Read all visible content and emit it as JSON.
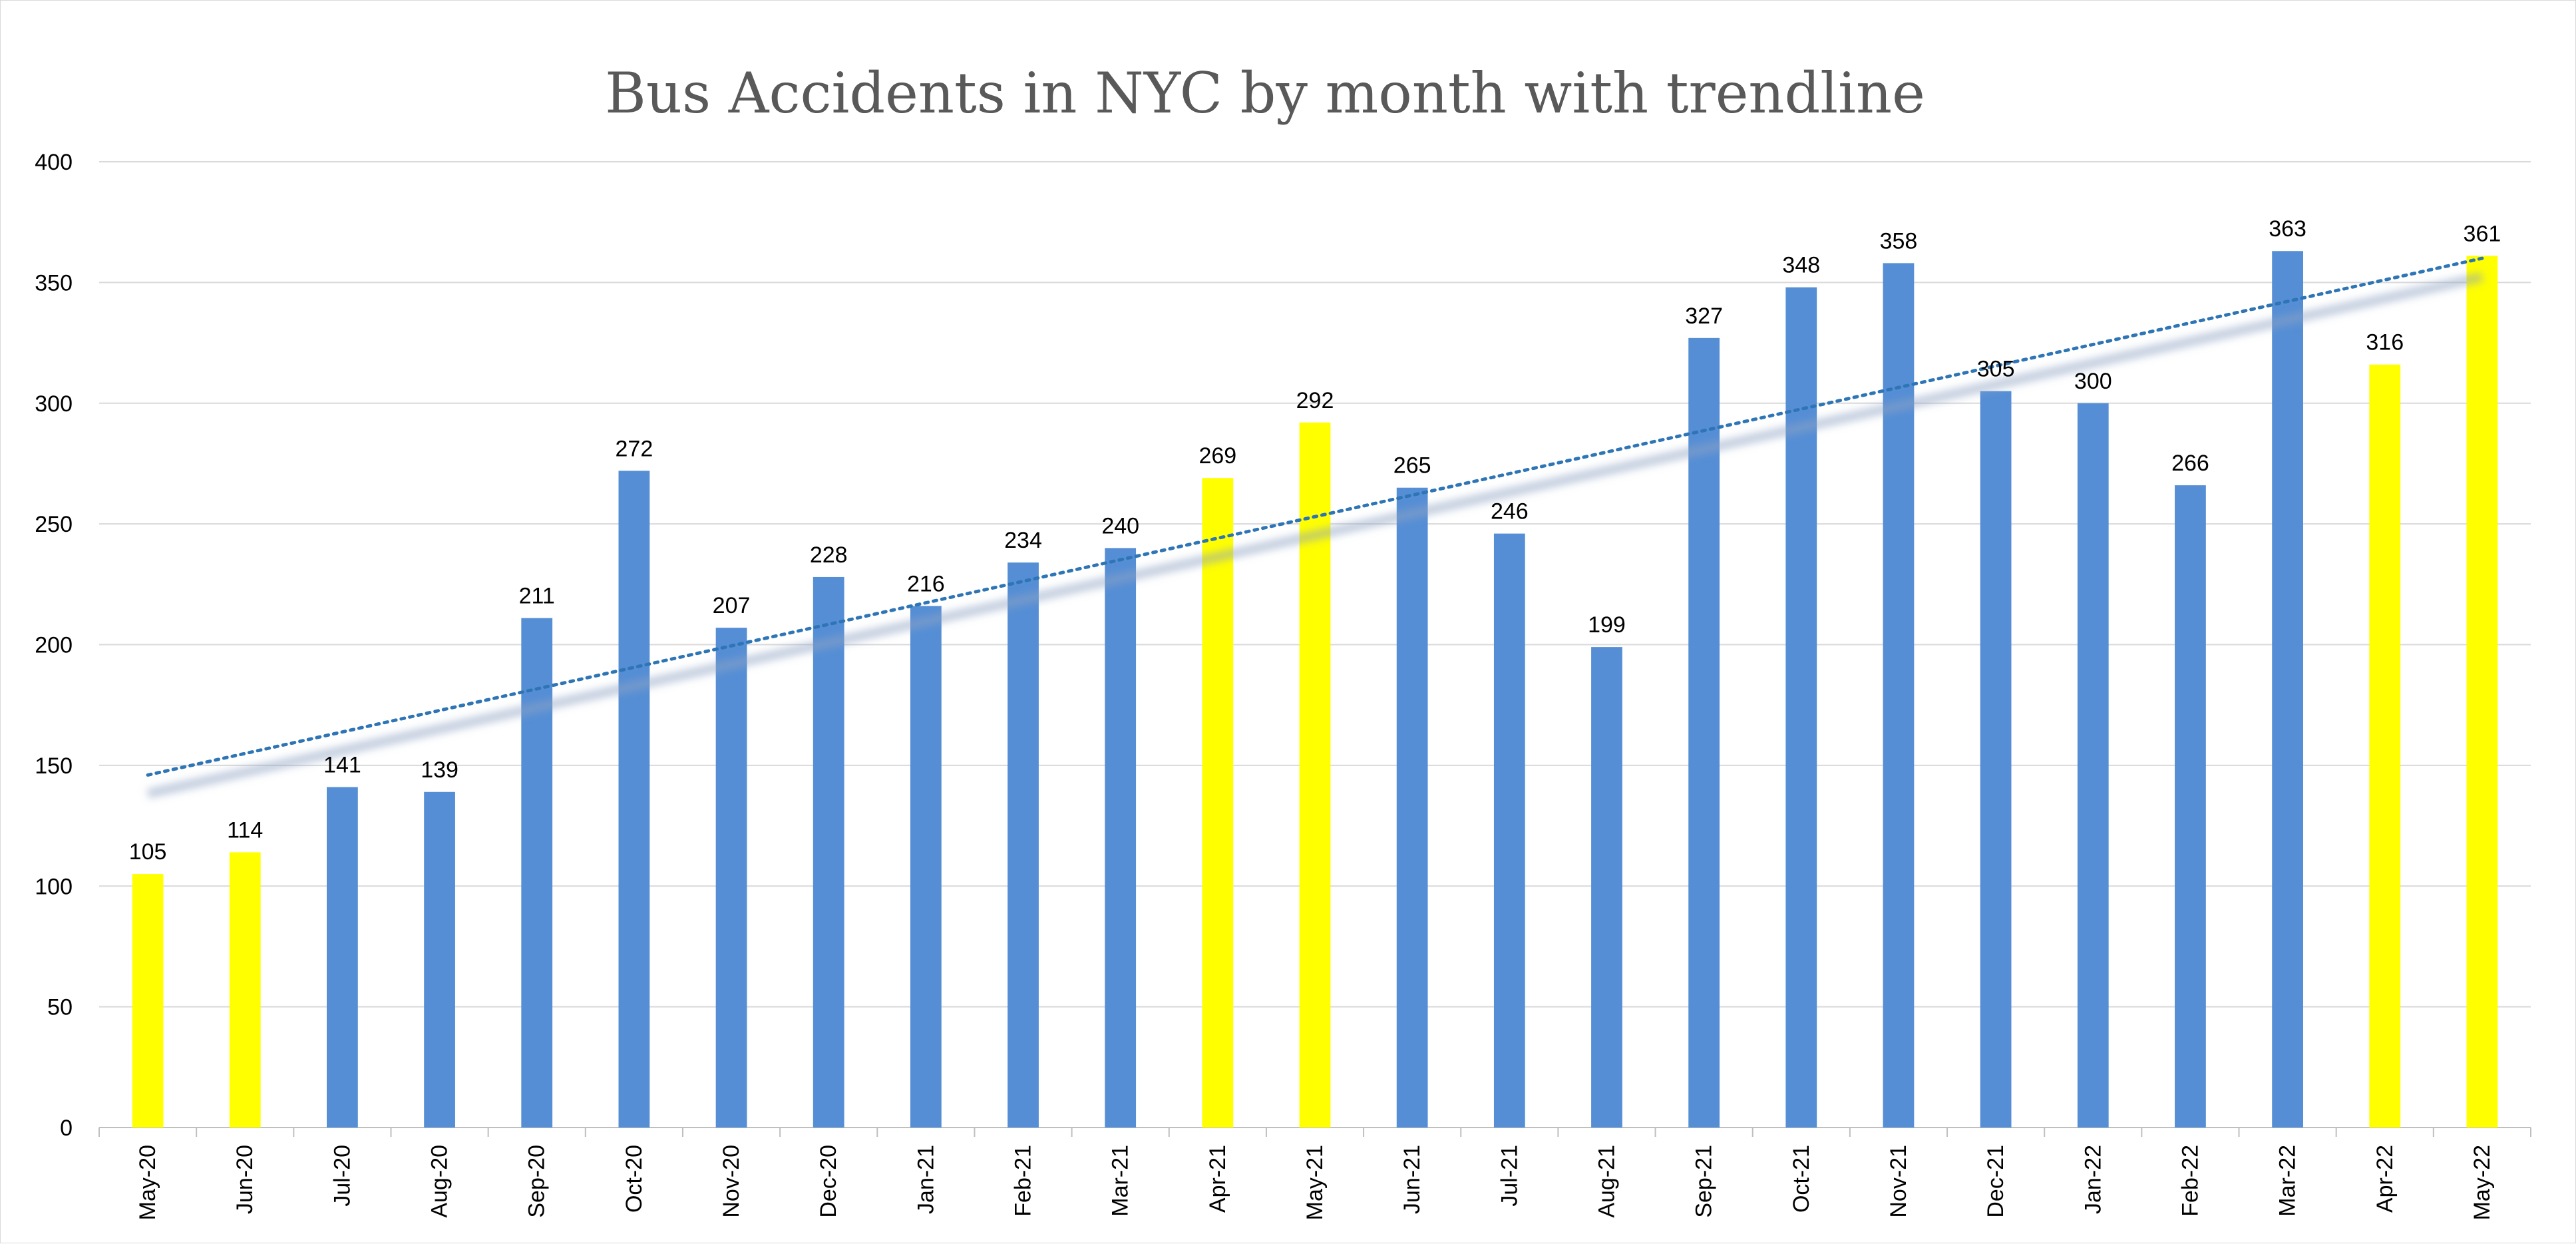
{
  "chart_data": {
    "type": "bar",
    "title": "Bus Accidents in NYC by month with trendline",
    "xlabel": "",
    "ylabel": "",
    "ylim": [
      0,
      400
    ],
    "yticks": [
      0,
      50,
      100,
      150,
      200,
      250,
      300,
      350,
      400
    ],
    "grid": true,
    "legend": "none",
    "categories": [
      "May-20",
      "Jun-20",
      "Jul-20",
      "Aug-20",
      "Sep-20",
      "Oct-20",
      "Nov-20",
      "Dec-20",
      "Jan-21",
      "Feb-21",
      "Mar-21",
      "Apr-21",
      "May-21",
      "Jun-21",
      "Jul-21",
      "Aug-21",
      "Sep-21",
      "Oct-21",
      "Nov-21",
      "Dec-21",
      "Jan-22",
      "Feb-22",
      "Mar-22",
      "Apr-22",
      "May-22"
    ],
    "values": [
      105,
      114,
      141,
      139,
      211,
      272,
      207,
      228,
      216,
      234,
      240,
      269,
      292,
      265,
      246,
      199,
      327,
      348,
      358,
      305,
      300,
      266,
      363,
      316,
      361
    ],
    "highlighted": [
      true,
      true,
      false,
      false,
      false,
      false,
      false,
      false,
      false,
      false,
      false,
      true,
      true,
      false,
      false,
      false,
      false,
      false,
      false,
      false,
      false,
      false,
      false,
      true,
      true
    ],
    "colors": {
      "bar": "#558ed5",
      "highlight": "#ffff00",
      "trendline": "#2e75b6",
      "grid": "#d9d9d9",
      "axis": "#bfbfbf"
    },
    "trendline": {
      "type": "linear",
      "style": "dotted",
      "start": 146,
      "end": 360
    }
  }
}
